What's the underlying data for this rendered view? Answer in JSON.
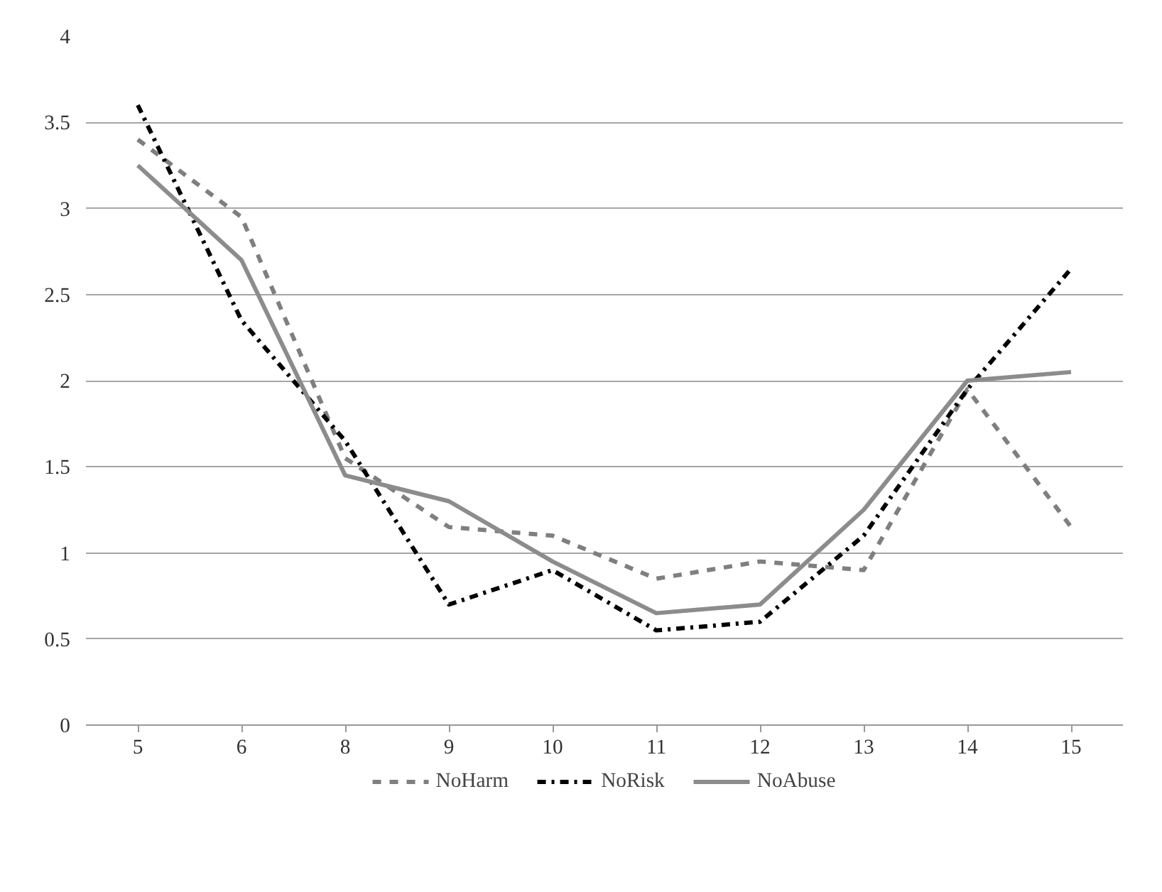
{
  "chart_data": {
    "type": "line",
    "categories": [
      "5",
      "6",
      "8",
      "9",
      "10",
      "11",
      "12",
      "13",
      "14",
      "15"
    ],
    "series": [
      {
        "name": "NoHarm",
        "color": "#7f7f7f",
        "line_style": "dashed",
        "values": [
          3.4,
          2.95,
          1.55,
          1.15,
          1.1,
          0.85,
          0.95,
          0.9,
          1.95,
          1.15
        ]
      },
      {
        "name": "NoRisk",
        "color": "#000000",
        "line_style": "dashdot",
        "values": [
          3.6,
          2.35,
          1.65,
          0.7,
          0.9,
          0.55,
          0.6,
          1.1,
          1.95,
          2.65
        ]
      },
      {
        "name": "NoAbuse",
        "color": "#8c8c8c",
        "line_style": "solid",
        "values": [
          3.25,
          2.7,
          1.45,
          1.3,
          0.95,
          0.65,
          0.7,
          1.25,
          2.0,
          2.05
        ]
      }
    ],
    "ylim": [
      0,
      4
    ],
    "yticks": [
      0,
      0.5,
      1,
      1.5,
      2,
      2.5,
      3,
      3.5,
      4
    ],
    "grid": "y",
    "legend": "bottom",
    "marker": "none"
  }
}
